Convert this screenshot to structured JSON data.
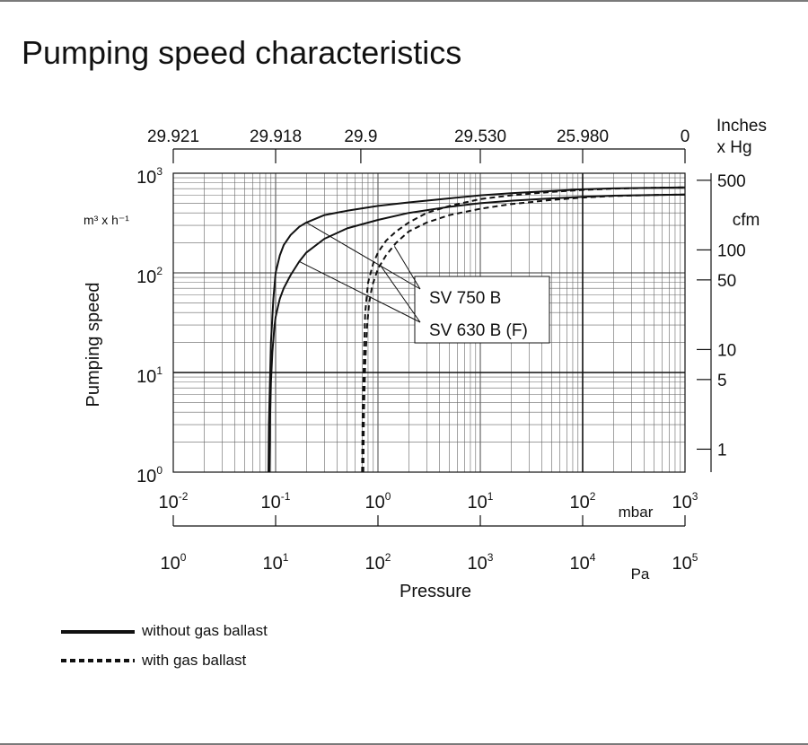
{
  "title": "Pumping speed characteristics",
  "chart_data": {
    "type": "line",
    "title": "Pumping speed characteristics",
    "xlabel": "Pressure",
    "ylabel": "Pumping speed",
    "y_unit": "m³ x h⁻¹",
    "x_unit_mbar": "mbar",
    "x_unit_pa": "Pa",
    "x_scale": "log",
    "y_scale": "log",
    "xlim_mbar": [
      0.01,
      1000
    ],
    "ylim": [
      1,
      1000
    ],
    "grid": true,
    "x_ticks_mbar": [
      {
        "base": "10",
        "exp": "-2",
        "value": 0.01
      },
      {
        "base": "10",
        "exp": "-1",
        "value": 0.1
      },
      {
        "base": "10",
        "exp": "0",
        "value": 1
      },
      {
        "base": "10",
        "exp": "1",
        "value": 10
      },
      {
        "base": "10",
        "exp": "2",
        "value": 100
      },
      {
        "base": "10",
        "exp": "3",
        "value": 1000
      }
    ],
    "x_ticks_pa": [
      {
        "base": "10",
        "exp": "0",
        "value": 1
      },
      {
        "base": "10",
        "exp": "1",
        "value": 10
      },
      {
        "base": "10",
        "exp": "2",
        "value": 100
      },
      {
        "base": "10",
        "exp": "3",
        "value": 1000
      },
      {
        "base": "10",
        "exp": "4",
        "value": 10000
      },
      {
        "base": "10",
        "exp": "5",
        "value": 100000
      }
    ],
    "y_ticks": [
      {
        "base": "10",
        "exp": "3",
        "value": 1000
      },
      {
        "base": "10",
        "exp": "2",
        "value": 100
      },
      {
        "base": "10",
        "exp": "1",
        "value": 10
      },
      {
        "base": "10",
        "exp": "0",
        "value": 1
      }
    ],
    "top_axis": {
      "label_line1": "Inches",
      "label_line2": "x Hg",
      "ticks": [
        {
          "label": "29.921",
          "mbar": 0.01
        },
        {
          "label": "29.918",
          "mbar": 0.1
        },
        {
          "label": "29.9",
          "mbar": 0.68
        },
        {
          "label": "29.530",
          "mbar": 10
        },
        {
          "label": "25.980",
          "mbar": 100
        },
        {
          "label": "0",
          "mbar": 1000
        }
      ]
    },
    "right_axis": {
      "label": "cfm",
      "ticks": [
        {
          "label": "500",
          "value": 850
        },
        {
          "label": "100",
          "value": 170
        },
        {
          "label": "50",
          "value": 85
        },
        {
          "label": "10",
          "value": 17
        },
        {
          "label": "5",
          "value": 8.5
        },
        {
          "label": "1",
          "value": 1.7
        }
      ]
    },
    "series": [
      {
        "name": "SV 750 B without gas ballast",
        "style": "solid",
        "x": [
          0.085,
          0.086,
          0.088,
          0.09,
          0.095,
          0.1,
          0.11,
          0.12,
          0.14,
          0.17,
          0.2,
          0.3,
          0.5,
          1,
          2,
          5,
          10,
          20,
          50,
          100,
          200,
          500,
          1000
        ],
        "y": [
          1,
          3,
          8,
          20,
          55,
          100,
          150,
          190,
          240,
          290,
          320,
          380,
          420,
          470,
          510,
          560,
          600,
          630,
          665,
          690,
          705,
          715,
          720
        ]
      },
      {
        "name": "SV 630 B (F) without gas ballast",
        "style": "solid",
        "x": [
          0.087,
          0.088,
          0.09,
          0.093,
          0.097,
          0.1,
          0.105,
          0.11,
          0.12,
          0.14,
          0.17,
          0.2,
          0.3,
          0.5,
          1,
          2,
          5,
          10,
          20,
          50,
          100,
          200,
          500,
          1000
        ],
        "y": [
          1,
          3,
          8,
          16,
          28,
          36,
          45,
          55,
          70,
          95,
          130,
          160,
          220,
          280,
          340,
          400,
          460,
          500,
          530,
          560,
          580,
          595,
          605,
          610
        ]
      },
      {
        "name": "SV 750 B with gas ballast",
        "style": "dashed",
        "x": [
          0.7,
          0.71,
          0.73,
          0.75,
          0.8,
          0.9,
          1,
          1.2,
          1.5,
          2,
          3,
          5,
          10,
          20,
          50,
          100,
          200,
          500,
          1000
        ],
        "y": [
          1,
          4,
          15,
          40,
          80,
          125,
          160,
          210,
          260,
          320,
          400,
          470,
          550,
          600,
          650,
          680,
          700,
          715,
          720
        ]
      },
      {
        "name": "SV 630 B (F) with gas ballast",
        "style": "dashed",
        "x": [
          0.72,
          0.73,
          0.75,
          0.78,
          0.82,
          0.88,
          1,
          1.2,
          1.5,
          2,
          3,
          5,
          10,
          20,
          50,
          100,
          200,
          500,
          1000
        ],
        "y": [
          1,
          4,
          12,
          28,
          50,
          75,
          110,
          150,
          200,
          260,
          320,
          380,
          440,
          490,
          540,
          570,
          590,
          605,
          610
        ]
      }
    ],
    "annotations": [
      {
        "text": "SV 750 B",
        "points_to": "SV 750 B"
      },
      {
        "text": "SV 630 B (F)",
        "points_to": "SV 630 B (F)"
      }
    ],
    "legend": [
      {
        "label": "without gas ballast",
        "style": "solid"
      },
      {
        "label": "with gas ballast",
        "style": "dashed"
      }
    ],
    "legend_position": "bottom-left"
  }
}
